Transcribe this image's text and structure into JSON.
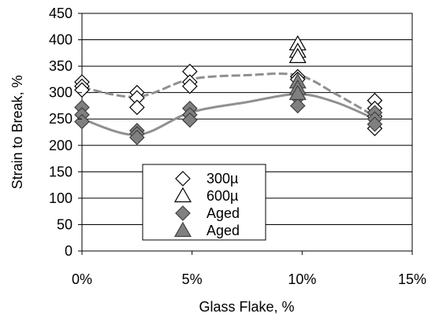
{
  "chart_data": {
    "type": "scatter",
    "xlabel": "Glass Flake, %",
    "ylabel": "Strain to Break, %",
    "xlim": [
      0,
      15
    ],
    "ylim": [
      0,
      450
    ],
    "x_ticks": [
      0,
      5,
      10,
      15
    ],
    "x_tick_labels": [
      "0%",
      "5%",
      "10%",
      "15%"
    ],
    "y_ticks": [
      0,
      50,
      100,
      150,
      200,
      250,
      300,
      350,
      400,
      450
    ],
    "y_tick_labels": [
      "0",
      "50",
      "100",
      "150",
      "200",
      "250",
      "300",
      "350",
      "400",
      "450"
    ],
    "grid": "horizontal",
    "legend_placement": "bottom-center",
    "series": [
      {
        "name": "300µ",
        "marker": "diamond",
        "fill": "#ffffff",
        "stroke": "#000000",
        "points": [
          [
            0,
            320
          ],
          [
            0,
            312
          ],
          [
            0,
            305
          ],
          [
            2.5,
            300
          ],
          [
            2.5,
            290
          ],
          [
            2.5,
            272
          ],
          [
            4.9,
            340
          ],
          [
            4.9,
            320
          ],
          [
            4.9,
            312
          ],
          [
            9.8,
            330
          ],
          [
            9.8,
            325
          ],
          [
            13.3,
            285
          ],
          [
            13.3,
            270
          ],
          [
            13.3,
            255
          ],
          [
            13.3,
            232
          ]
        ]
      },
      {
        "name": "600µ",
        "marker": "triangle",
        "fill": "#ffffff",
        "stroke": "#000000",
        "points": [
          [
            9.8,
            392
          ],
          [
            9.8,
            378
          ],
          [
            9.8,
            368
          ]
        ]
      },
      {
        "name": "Aged",
        "marker": "diamond",
        "fill": "#808080",
        "stroke": "#404040",
        "points": [
          [
            0,
            272
          ],
          [
            0,
            258
          ],
          [
            0,
            245
          ],
          [
            2.5,
            228
          ],
          [
            2.5,
            222
          ],
          [
            2.5,
            215
          ],
          [
            4.9,
            270
          ],
          [
            4.9,
            258
          ],
          [
            4.9,
            248
          ],
          [
            9.8,
            300
          ],
          [
            9.8,
            290
          ],
          [
            9.8,
            275
          ],
          [
            13.3,
            262
          ],
          [
            13.3,
            250
          ],
          [
            13.3,
            240
          ]
        ]
      },
      {
        "name": "Aged",
        "marker": "triangle",
        "fill": "#808080",
        "stroke": "#404040",
        "points": [
          [
            9.8,
            320
          ],
          [
            9.8,
            308
          ],
          [
            9.8,
            298
          ]
        ]
      }
    ],
    "trendlines": [
      {
        "style": "dashed",
        "color": "#909090",
        "points": [
          [
            0,
            310
          ],
          [
            2.5,
            292
          ],
          [
            4.9,
            325
          ],
          [
            7.5,
            333
          ],
          [
            9.8,
            333
          ],
          [
            11.5,
            298
          ],
          [
            13.3,
            255
          ]
        ]
      },
      {
        "style": "solid",
        "color": "#909090",
        "points": [
          [
            0,
            250
          ],
          [
            2.5,
            220
          ],
          [
            4.9,
            262
          ],
          [
            7.5,
            282
          ],
          [
            9.8,
            297
          ],
          [
            11.5,
            282
          ],
          [
            13.3,
            250
          ]
        ]
      }
    ]
  }
}
